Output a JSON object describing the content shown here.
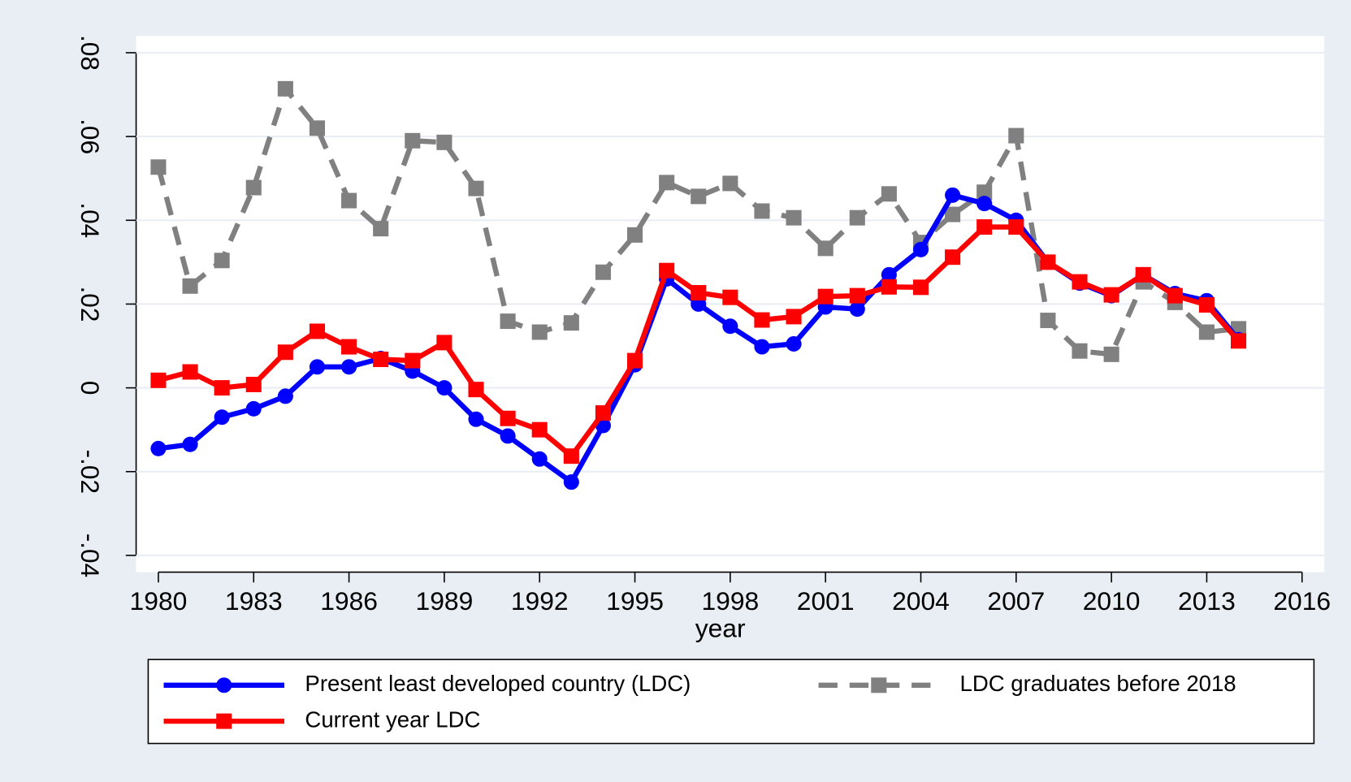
{
  "chart_data": {
    "type": "line",
    "x_label": "year",
    "x": [
      1980,
      1981,
      1982,
      1983,
      1984,
      1985,
      1986,
      1987,
      1988,
      1989,
      1990,
      1991,
      1992,
      1993,
      1994,
      1995,
      1996,
      1997,
      1998,
      1999,
      2000,
      2001,
      2002,
      2003,
      2004,
      2005,
      2006,
      2007,
      2008,
      2009,
      2010,
      2011,
      2012,
      2013,
      2014
    ],
    "series": [
      {
        "name": "Present least developed country (LDC)",
        "color": "#0000ff",
        "marker": "circle",
        "dashed": false,
        "values": [
          -0.0145,
          -0.0135,
          -0.007,
          -0.005,
          -0.002,
          0.005,
          0.005,
          0.007,
          0.004,
          0.0,
          -0.0075,
          -0.0115,
          -0.017,
          -0.0225,
          -0.009,
          0.0055,
          0.026,
          0.02,
          0.0147,
          0.0098,
          0.0105,
          0.0193,
          0.0188,
          0.027,
          0.033,
          0.046,
          0.044,
          0.04,
          0.03,
          0.025,
          0.022,
          0.027,
          0.0225,
          0.0208,
          0.0115
        ]
      },
      {
        "name": "Current year LDC",
        "color": "#ff0000",
        "marker": "square",
        "dashed": false,
        "values": [
          0.0018,
          0.0038,
          0.0,
          0.0008,
          0.0085,
          0.0135,
          0.0098,
          0.0068,
          0.0065,
          0.0108,
          -0.0004,
          -0.0073,
          -0.01,
          -0.0163,
          -0.006,
          0.0065,
          0.028,
          0.0227,
          0.0216,
          0.0162,
          0.017,
          0.0218,
          0.022,
          0.0241,
          0.024,
          0.0312,
          0.0384,
          0.0384,
          0.03,
          0.0253,
          0.0222,
          0.027,
          0.022,
          0.0198,
          0.0112
        ]
      },
      {
        "name": "LDC graduates before 2018",
        "color": "#808080",
        "marker": "square",
        "dashed": true,
        "values": [
          0.0527,
          0.0243,
          0.0304,
          0.0478,
          0.0714,
          0.062,
          0.0447,
          0.038,
          0.059,
          0.0586,
          0.0476,
          0.0159,
          0.0133,
          0.0155,
          0.0276,
          0.0365,
          0.049,
          0.0457,
          0.0488,
          0.0422,
          0.0406,
          0.0333,
          0.0406,
          0.0463,
          0.0347,
          0.0414,
          0.0467,
          0.0602,
          0.0161,
          0.0088,
          0.008,
          0.0253,
          0.0204,
          0.0133,
          0.0141
        ]
      }
    ],
    "xlim": [
      1979.3,
      2016.7
    ],
    "xticks": [
      1980,
      1983,
      1986,
      1989,
      1992,
      1995,
      1998,
      2001,
      2004,
      2007,
      2010,
      2013,
      2016
    ],
    "ylim": [
      -0.044,
      0.084
    ],
    "yticks": [
      {
        "value": -0.04,
        "label": "-.04"
      },
      {
        "value": -0.02,
        "label": "-.02"
      },
      0,
      {
        "value": 0.02,
        "label": ".02"
      },
      {
        "value": 0.04,
        "label": ".04"
      },
      {
        "value": 0.06,
        "label": ".06"
      },
      {
        "value": 0.08,
        "label": ".08"
      }
    ],
    "grid": true
  }
}
